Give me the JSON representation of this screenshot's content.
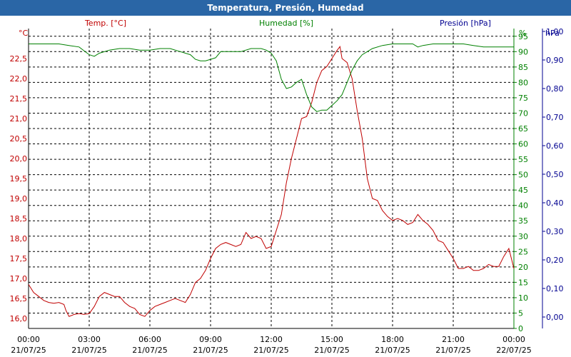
{
  "window": {
    "title": "Temperatura, Presión, Humedad"
  },
  "colors": {
    "temp": "#c00000",
    "hum": "#008000",
    "pres": "#000090",
    "grid": "#000000",
    "title_bg": "#2a66a6"
  },
  "chart_data": {
    "type": "line",
    "title": "Temperatura, Presión, Humedad",
    "grid": true,
    "x_ticks": [
      {
        "time": "00:00",
        "date": "21/07/25"
      },
      {
        "time": "03:00",
        "date": "21/07/25"
      },
      {
        "time": "06:00",
        "date": "21/07/25"
      },
      {
        "time": "09:00",
        "date": "21/07/25"
      },
      {
        "time": "12:00",
        "date": "21/07/25"
      },
      {
        "time": "15:00",
        "date": "21/07/25"
      },
      {
        "time": "18:00",
        "date": "21/07/25"
      },
      {
        "time": "21:00",
        "date": "21/07/25"
      },
      {
        "time": "00:00",
        "date": "22/07/25"
      }
    ],
    "x_range_hours": [
      0,
      24
    ],
    "axes": {
      "temp": {
        "label": "Temp. [°C]",
        "unit": "°C",
        "range": [
          15.75,
          23.25
        ],
        "ticks": [
          "16,0",
          "16,5",
          "17,0",
          "17,5",
          "18,0",
          "18,5",
          "19,0",
          "19,5",
          "20,0",
          "20,5",
          "21,0",
          "21,5",
          "22,0",
          "22,5"
        ]
      },
      "hum": {
        "label": "Humedad [%]",
        "unit": "%",
        "range": [
          0,
          97.5
        ],
        "ticks": [
          "0",
          "5",
          "10",
          "15",
          "20",
          "25",
          "30",
          "35",
          "40",
          "45",
          "50",
          "55",
          "60",
          "65",
          "70",
          "75",
          "80",
          "85",
          "90",
          "95"
        ]
      },
      "pres": {
        "label": "Presión [hPa]",
        "unit": "hPa",
        "range": [
          -0.04,
          1.01
        ],
        "ticks": [
          "0,00",
          "0,10",
          "0,20",
          "0,30",
          "0,40",
          "0,50",
          "0,60",
          "0,70",
          "0,80",
          "0,90",
          "1,00"
        ]
      }
    },
    "series": [
      {
        "name": "Temp. [°C]",
        "axis": "temp",
        "points": [
          [
            0,
            16.85
          ],
          [
            0.25,
            16.65
          ],
          [
            0.5,
            16.55
          ],
          [
            0.75,
            16.45
          ],
          [
            1,
            16.4
          ],
          [
            1.25,
            16.38
          ],
          [
            1.5,
            16.4
          ],
          [
            1.75,
            16.35
          ],
          [
            1.85,
            16.2
          ],
          [
            2,
            16.05
          ],
          [
            2.25,
            16.1
          ],
          [
            2.5,
            16.12
          ],
          [
            2.75,
            16.1
          ],
          [
            3,
            16.12
          ],
          [
            3.25,
            16.3
          ],
          [
            3.5,
            16.55
          ],
          [
            3.75,
            16.65
          ],
          [
            4,
            16.6
          ],
          [
            4.25,
            16.55
          ],
          [
            4.5,
            16.55
          ],
          [
            4.75,
            16.4
          ],
          [
            5,
            16.3
          ],
          [
            5.25,
            16.25
          ],
          [
            5.5,
            16.1
          ],
          [
            5.75,
            16.05
          ],
          [
            6,
            16.2
          ],
          [
            6.25,
            16.3
          ],
          [
            6.5,
            16.35
          ],
          [
            6.75,
            16.4
          ],
          [
            7,
            16.45
          ],
          [
            7.25,
            16.5
          ],
          [
            7.5,
            16.45
          ],
          [
            7.75,
            16.4
          ],
          [
            8,
            16.6
          ],
          [
            8.25,
            16.9
          ],
          [
            8.5,
            17.0
          ],
          [
            8.75,
            17.2
          ],
          [
            9,
            17.5
          ],
          [
            9.25,
            17.75
          ],
          [
            9.5,
            17.85
          ],
          [
            9.75,
            17.9
          ],
          [
            10,
            17.85
          ],
          [
            10.25,
            17.8
          ],
          [
            10.5,
            17.85
          ],
          [
            10.75,
            18.15
          ],
          [
            11,
            18.0
          ],
          [
            11.25,
            18.05
          ],
          [
            11.5,
            18.0
          ],
          [
            11.75,
            17.75
          ],
          [
            12,
            17.8
          ],
          [
            12.25,
            18.2
          ],
          [
            12.5,
            18.6
          ],
          [
            12.75,
            19.4
          ],
          [
            13,
            20.0
          ],
          [
            13.25,
            20.5
          ],
          [
            13.5,
            21.0
          ],
          [
            13.75,
            21.05
          ],
          [
            14,
            21.4
          ],
          [
            14.25,
            21.9
          ],
          [
            14.5,
            22.2
          ],
          [
            14.75,
            22.3
          ],
          [
            15,
            22.5
          ],
          [
            15.25,
            22.7
          ],
          [
            15.4,
            22.8
          ],
          [
            15.5,
            22.5
          ],
          [
            15.75,
            22.4
          ],
          [
            16,
            22.0
          ],
          [
            16.25,
            21.2
          ],
          [
            16.5,
            20.5
          ],
          [
            16.75,
            19.5
          ],
          [
            17,
            19.0
          ],
          [
            17.25,
            18.95
          ],
          [
            17.5,
            18.7
          ],
          [
            17.75,
            18.55
          ],
          [
            18,
            18.45
          ],
          [
            18.25,
            18.5
          ],
          [
            18.5,
            18.45
          ],
          [
            18.75,
            18.35
          ],
          [
            19,
            18.4
          ],
          [
            19.25,
            18.6
          ],
          [
            19.5,
            18.45
          ],
          [
            19.75,
            18.35
          ],
          [
            20,
            18.2
          ],
          [
            20.25,
            17.95
          ],
          [
            20.5,
            17.9
          ],
          [
            20.75,
            17.7
          ],
          [
            21,
            17.5
          ],
          [
            21.25,
            17.25
          ],
          [
            21.5,
            17.25
          ],
          [
            21.75,
            17.3
          ],
          [
            22,
            17.2
          ],
          [
            22.25,
            17.2
          ],
          [
            22.5,
            17.25
          ],
          [
            22.75,
            17.35
          ],
          [
            23,
            17.3
          ],
          [
            23.25,
            17.3
          ],
          [
            23.5,
            17.55
          ],
          [
            23.75,
            17.75
          ],
          [
            24,
            17.25
          ]
        ]
      },
      {
        "name": "Humedad [%]",
        "axis": "hum",
        "points": [
          [
            0,
            92.5
          ],
          [
            0.5,
            92.5
          ],
          [
            1,
            92.5
          ],
          [
            1.5,
            92.5
          ],
          [
            2,
            92.0
          ],
          [
            2.5,
            91.5
          ],
          [
            3,
            89.0
          ],
          [
            3.25,
            88.5
          ],
          [
            3.5,
            89.5
          ],
          [
            4,
            90.5
          ],
          [
            4.5,
            91
          ],
          [
            5,
            91
          ],
          [
            5.5,
            90.5
          ],
          [
            6,
            90.5
          ],
          [
            6.5,
            91
          ],
          [
            7,
            91
          ],
          [
            7.5,
            90
          ],
          [
            8,
            89
          ],
          [
            8.25,
            87.5
          ],
          [
            8.5,
            87
          ],
          [
            8.75,
            87
          ],
          [
            9,
            87.5
          ],
          [
            9.25,
            88
          ],
          [
            9.5,
            90
          ],
          [
            10,
            90
          ],
          [
            10.5,
            90
          ],
          [
            11,
            91
          ],
          [
            11.5,
            91
          ],
          [
            11.75,
            90.5
          ],
          [
            12,
            89.5
          ],
          [
            12.25,
            87
          ],
          [
            12.5,
            81
          ],
          [
            12.75,
            78
          ],
          [
            13,
            78.5
          ],
          [
            13.25,
            80
          ],
          [
            13.5,
            81
          ],
          [
            13.75,
            76
          ],
          [
            14,
            72
          ],
          [
            14.25,
            70.5
          ],
          [
            14.5,
            71
          ],
          [
            14.75,
            71
          ],
          [
            15,
            72.5
          ],
          [
            15.25,
            74
          ],
          [
            15.5,
            76
          ],
          [
            15.75,
            80
          ],
          [
            16,
            84
          ],
          [
            16.25,
            87
          ],
          [
            16.5,
            89
          ],
          [
            16.75,
            90
          ],
          [
            17,
            91
          ],
          [
            17.5,
            92
          ],
          [
            18,
            92.5
          ],
          [
            18.5,
            92.5
          ],
          [
            19,
            92.5
          ],
          [
            19.25,
            91.5
          ],
          [
            19.5,
            92
          ],
          [
            20,
            92.5
          ],
          [
            20.5,
            92.5
          ],
          [
            21,
            92.5
          ],
          [
            21.5,
            92.5
          ],
          [
            22,
            92
          ],
          [
            22.5,
            91.5
          ],
          [
            23,
            91.5
          ],
          [
            23.5,
            91.5
          ],
          [
            24,
            91.5
          ]
        ]
      }
    ]
  }
}
